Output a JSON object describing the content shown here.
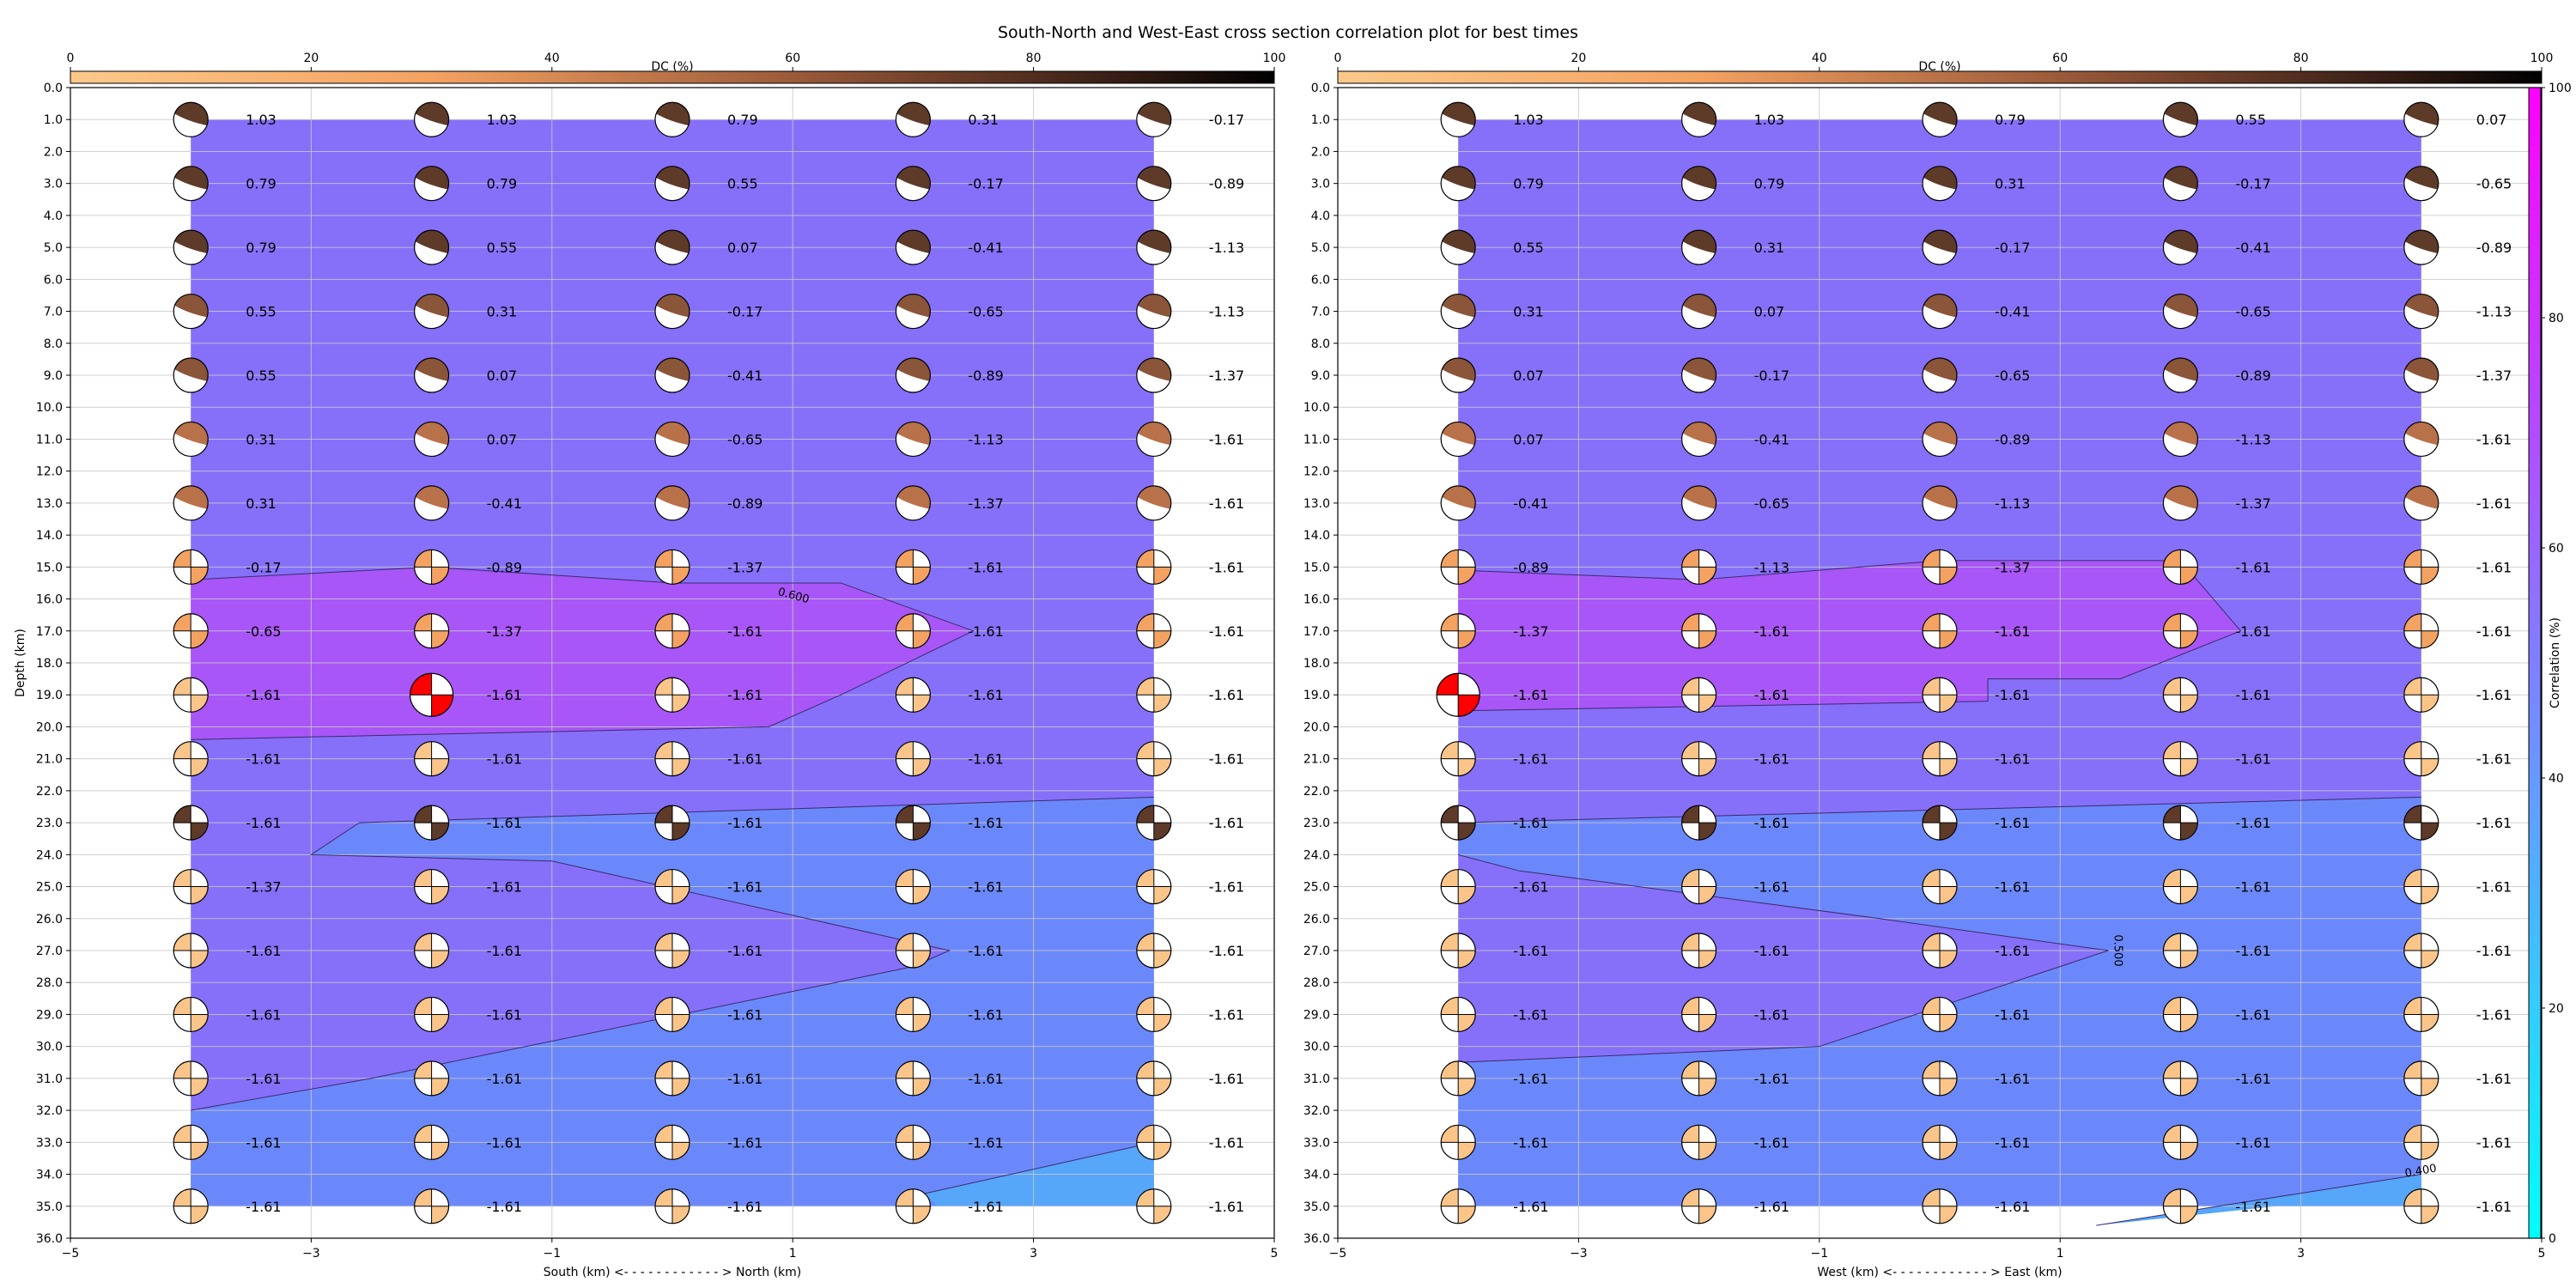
{
  "figure": {
    "title": "South-North and West-East cross section correlation plot for best times"
  },
  "dc_colorbar": {
    "label": "DC (%)",
    "ticks": [
      0,
      20,
      40,
      60,
      80,
      100
    ]
  },
  "corr_colorbar": {
    "label": "Correlation (%)",
    "ticks": [
      0,
      20,
      40,
      60,
      80,
      100
    ]
  },
  "chart_data": [
    {
      "type": "heatmap",
      "name": "south-north",
      "xlabel": "South (km) <- - - - - - - - - - - - > North (km)",
      "ylabel": "Depth (km)",
      "xlim": [
        -5,
        5
      ],
      "ylim": [
        36,
        0
      ],
      "xticks": [
        -5,
        -3,
        -1,
        1,
        3,
        5
      ],
      "yticks": [
        "0.0",
        "1.0",
        "2.0",
        "3.0",
        "4.0",
        "5.0",
        "6.0",
        "7.0",
        "8.0",
        "9.0",
        "10.0",
        "11.0",
        "12.0",
        "13.0",
        "14.0",
        "15.0",
        "16.0",
        "17.0",
        "18.0",
        "19.0",
        "20.0",
        "21.0",
        "22.0",
        "23.0",
        "24.0",
        "25.0",
        "26.0",
        "27.0",
        "28.0",
        "29.0",
        "30.0",
        "31.0",
        "32.0",
        "33.0",
        "34.0",
        "35.0",
        "36.0"
      ],
      "grid": true,
      "x_positions": [
        -4,
        -2,
        0,
        2,
        4
      ],
      "depths": [
        1,
        3,
        5,
        7,
        9,
        11,
        13,
        15,
        17,
        19,
        21,
        23,
        25,
        27,
        29,
        31,
        33,
        35
      ],
      "values": [
        [
          "1.03",
          "1.03",
          "0.79",
          "0.31",
          "-0.17"
        ],
        [
          "0.79",
          "0.79",
          "0.55",
          "-0.17",
          "-0.89"
        ],
        [
          "0.79",
          "0.55",
          "0.07",
          "-0.41",
          "-1.13"
        ],
        [
          "0.55",
          "0.31",
          "-0.17",
          "-0.65",
          "-1.13"
        ],
        [
          "0.55",
          "0.07",
          "-0.41",
          "-0.89",
          "-1.37"
        ],
        [
          "0.31",
          "0.07",
          "-0.65",
          "-1.13",
          "-1.61"
        ],
        [
          "0.31",
          "-0.41",
          "-0.89",
          "-1.37",
          "-1.61"
        ],
        [
          "-0.17",
          "-0.89",
          "-1.37",
          "-1.61",
          "-1.61"
        ],
        [
          "-0.65",
          "-1.37",
          "-1.61",
          "-1.61",
          "-1.61"
        ],
        [
          "-1.61",
          "-1.61",
          "-1.61",
          "-1.61",
          "-1.61"
        ],
        [
          "-1.61",
          "-1.61",
          "-1.61",
          "-1.61",
          "-1.61"
        ],
        [
          "-1.61",
          "-1.61",
          "-1.61",
          "-1.61",
          "-1.61"
        ],
        [
          "-1.37",
          "-1.61",
          "-1.61",
          "-1.61",
          "-1.61"
        ],
        [
          "-1.61",
          "-1.61",
          "-1.61",
          "-1.61",
          "-1.61"
        ],
        [
          "-1.61",
          "-1.61",
          "-1.61",
          "-1.61",
          "-1.61"
        ],
        [
          "-1.61",
          "-1.61",
          "-1.61",
          "-1.61",
          "-1.61"
        ],
        [
          "-1.61",
          "-1.61",
          "-1.61",
          "-1.61",
          "-1.61"
        ],
        [
          "-1.61",
          "-1.61",
          "-1.61",
          "-1.61",
          "-1.61"
        ]
      ],
      "best": {
        "x": -2,
        "depth": 19
      },
      "contour_labels": [
        {
          "text": "0.600",
          "x": 1.0,
          "depth": 16.0,
          "rotate": 15
        }
      ],
      "regions": [
        {
          "color": "#a856f7",
          "points": [
            [
              -4,
              15.4
            ],
            [
              -2,
              15.0
            ],
            [
              0,
              15.5
            ],
            [
              1.4,
              15.5
            ],
            [
              2.5,
              17.0
            ],
            [
              1.4,
              19.0
            ],
            [
              0.8,
              20.0
            ],
            [
              -4,
              20.4
            ]
          ]
        },
        {
          "color": "#6b88fb",
          "points": [
            [
              -2.6,
              23.0
            ],
            [
              4,
              22.2
            ],
            [
              4,
              35
            ],
            [
              -4,
              35
            ],
            [
              -4,
              32.0
            ],
            [
              -2.5,
              31.0
            ],
            [
              2,
              27.5
            ],
            [
              2.3,
              27.0
            ],
            [
              -1,
              24.2
            ],
            [
              -3.0,
              24.0
            ]
          ]
        },
        {
          "color": "#56a6fa",
          "points": [
            [
              4,
              33.0
            ],
            [
              4,
              35
            ],
            [
              2.2,
              35
            ],
            [
              2.1,
              34.6
            ]
          ]
        }
      ],
      "contour_lines": [
        [
          [
            -4,
            15.4
          ],
          [
            -2,
            15.0
          ],
          [
            0,
            15.5
          ],
          [
            1.4,
            15.5
          ],
          [
            2.5,
            17.0
          ],
          [
            1.4,
            19.0
          ],
          [
            0.8,
            20.0
          ],
          [
            -4,
            20.4
          ]
        ],
        [
          [
            -2.6,
            23.0
          ],
          [
            4,
            22.2
          ]
        ],
        [
          [
            -2.6,
            23.0
          ],
          [
            -3.0,
            24.0
          ],
          [
            -1,
            24.2
          ],
          [
            2.3,
            27.0
          ],
          [
            2,
            27.5
          ],
          [
            -2.5,
            31.0
          ],
          [
            -4,
            32.0
          ]
        ],
        [
          [
            2.1,
            34.6
          ],
          [
            4,
            33.0
          ]
        ]
      ]
    },
    {
      "type": "heatmap",
      "name": "west-east",
      "xlabel": "West (km) <- - - - - - - - - - - - > East (km)",
      "ylabel": "",
      "xlim": [
        -5,
        5
      ],
      "ylim": [
        36,
        0
      ],
      "xticks": [
        -5,
        -3,
        -1,
        1,
        3,
        5
      ],
      "yticks": [
        "0.0",
        "1.0",
        "2.0",
        "3.0",
        "4.0",
        "5.0",
        "6.0",
        "7.0",
        "8.0",
        "9.0",
        "10.0",
        "11.0",
        "12.0",
        "13.0",
        "14.0",
        "15.0",
        "16.0",
        "17.0",
        "18.0",
        "19.0",
        "20.0",
        "21.0",
        "22.0",
        "23.0",
        "24.0",
        "25.0",
        "26.0",
        "27.0",
        "28.0",
        "29.0",
        "30.0",
        "31.0",
        "32.0",
        "33.0",
        "34.0",
        "35.0",
        "36.0"
      ],
      "grid": true,
      "x_positions": [
        -4,
        -2,
        0,
        2,
        4
      ],
      "depths": [
        1,
        3,
        5,
        7,
        9,
        11,
        13,
        15,
        17,
        19,
        21,
        23,
        25,
        27,
        29,
        31,
        33,
        35
      ],
      "values": [
        [
          "1.03",
          "1.03",
          "0.79",
          "0.55",
          "0.07"
        ],
        [
          "0.79",
          "0.79",
          "0.31",
          "-0.17",
          "-0.65"
        ],
        [
          "0.55",
          "0.31",
          "-0.17",
          "-0.41",
          "-0.89"
        ],
        [
          "0.31",
          "0.07",
          "-0.41",
          "-0.65",
          "-1.13"
        ],
        [
          "0.07",
          "-0.17",
          "-0.65",
          "-0.89",
          "-1.37"
        ],
        [
          "0.07",
          "-0.41",
          "-0.89",
          "-1.13",
          "-1.61"
        ],
        [
          "-0.41",
          "-0.65",
          "-1.13",
          "-1.37",
          "-1.61"
        ],
        [
          "-0.89",
          "-1.13",
          "-1.37",
          "-1.61",
          "-1.61"
        ],
        [
          "-1.37",
          "-1.61",
          "-1.61",
          "-1.61",
          "-1.61"
        ],
        [
          "-1.61",
          "-1.61",
          "-1.61",
          "-1.61",
          "-1.61"
        ],
        [
          "-1.61",
          "-1.61",
          "-1.61",
          "-1.61",
          "-1.61"
        ],
        [
          "-1.61",
          "-1.61",
          "-1.61",
          "-1.61",
          "-1.61"
        ],
        [
          "-1.61",
          "-1.61",
          "-1.61",
          "-1.61",
          "-1.61"
        ],
        [
          "-1.61",
          "-1.61",
          "-1.61",
          "-1.61",
          "-1.61"
        ],
        [
          "-1.61",
          "-1.61",
          "-1.61",
          "-1.61",
          "-1.61"
        ],
        [
          "-1.61",
          "-1.61",
          "-1.61",
          "-1.61",
          "-1.61"
        ],
        [
          "-1.61",
          "-1.61",
          "-1.61",
          "-1.61",
          "-1.61"
        ],
        [
          "-1.61",
          "-1.61",
          "-1.61",
          "-1.61",
          "-1.61"
        ]
      ],
      "best": {
        "x": -4,
        "depth": 19
      },
      "contour_labels": [
        {
          "text": "0.500",
          "x": 1.45,
          "depth": 27.0,
          "rotate": 90
        },
        {
          "text": "0.400",
          "x": 4.0,
          "depth": 34.0,
          "rotate": -10
        }
      ],
      "regions": [
        {
          "color": "#a856f7",
          "points": [
            [
              -4,
              15.1
            ],
            [
              -2,
              15.4
            ],
            [
              0,
              14.8
            ],
            [
              2,
              14.8
            ],
            [
              2.5,
              17.0
            ],
            [
              1.5,
              18.5
            ],
            [
              0.4,
              18.5
            ],
            [
              0.4,
              19.2
            ],
            [
              -4,
              19.5
            ]
          ]
        },
        {
          "color": "#6b88fb",
          "points": [
            [
              -4,
              23.0
            ],
            [
              4,
              22.2
            ],
            [
              4,
              35
            ],
            [
              -4,
              35
            ],
            [
              -4,
              30.5
            ],
            [
              -1,
              30.0
            ],
            [
              1.4,
              27.0
            ],
            [
              -0.5,
              26.0
            ],
            [
              -3.5,
              24.5
            ],
            [
              -4,
              24.0
            ]
          ]
        },
        {
          "color": "#56a6fa",
          "points": [
            [
              4,
              34.0
            ],
            [
              4,
              35
            ],
            [
              2.8,
              35
            ],
            [
              1.3,
              35.6
            ]
          ]
        }
      ],
      "contour_lines": [
        [
          [
            -4,
            15.1
          ],
          [
            -2,
            15.4
          ],
          [
            0,
            14.8
          ],
          [
            2,
            14.8
          ],
          [
            2.5,
            17.0
          ],
          [
            1.5,
            18.5
          ],
          [
            0.4,
            18.5
          ],
          [
            0.4,
            19.2
          ],
          [
            -4,
            19.5
          ]
        ],
        [
          [
            -4,
            23.0
          ],
          [
            4,
            22.2
          ]
        ],
        [
          [
            -4,
            24.0
          ],
          [
            -3.5,
            24.5
          ],
          [
            -0.5,
            26.0
          ],
          [
            1.4,
            27.0
          ],
          [
            -1,
            30.0
          ],
          [
            -4,
            30.5
          ]
        ],
        [
          [
            1.3,
            35.6
          ],
          [
            4,
            34.0
          ]
        ]
      ]
    }
  ]
}
